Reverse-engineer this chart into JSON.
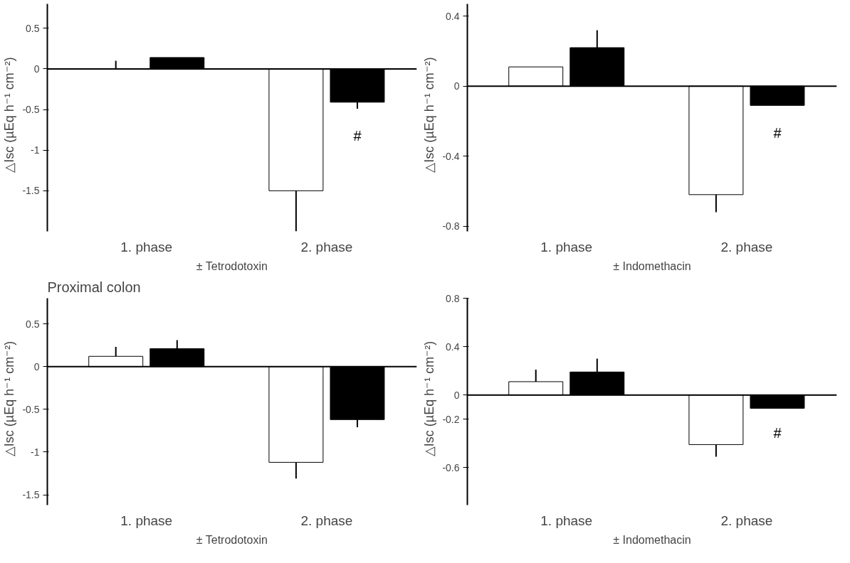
{
  "chart_data": [
    {
      "type": "bar",
      "xlabel": "± Tetrodotoxin",
      "ylabel": "△Isc (µEq h⁻¹ cm⁻²)",
      "categories": [
        "1. phase",
        "2. phase"
      ],
      "ylim": [
        -2.0,
        0.8
      ],
      "yticks": [
        0.5,
        0,
        -0.5,
        -1,
        -1.5
      ],
      "annotations": [
        "#"
      ],
      "series": [
        {
          "color": "#ffffff",
          "values": [
            0.0,
            -1.5
          ],
          "errors": [
            [
              0.0,
              0.1
            ],
            [
              -2.0,
              -1.5
            ]
          ]
        },
        {
          "color": "#000000",
          "values": [
            0.14,
            -0.41
          ],
          "errors": [
            null,
            [
              -0.49,
              -0.41
            ]
          ]
        }
      ]
    },
    {
      "type": "bar",
      "xlabel": "± Indomethacin",
      "ylabel": "△Isc (µEq h⁻¹ cm⁻²)",
      "categories": [
        "1. phase",
        "2. phase"
      ],
      "ylim": [
        -0.83,
        0.47
      ],
      "yticks": [
        0.4,
        0,
        -0.4,
        -0.8
      ],
      "annotations": [
        "#"
      ],
      "series": [
        {
          "color": "#ffffff",
          "values": [
            0.11,
            -0.62
          ],
          "errors": [
            null,
            [
              -0.72,
              -0.62
            ]
          ]
        },
        {
          "color": "#000000",
          "values": [
            0.22,
            -0.11
          ],
          "errors": [
            [
              0.22,
              0.32
            ],
            null
          ]
        }
      ]
    },
    {
      "type": "bar",
      "title": "Proximal colon",
      "xlabel": "± Tetrodotoxin",
      "ylabel": "△Isc (µEq h⁻¹ cm⁻²)",
      "categories": [
        "1. phase",
        "2. phase"
      ],
      "ylim": [
        -1.62,
        0.8
      ],
      "yticks": [
        0.5,
        0,
        -0.5,
        -1,
        -1.5
      ],
      "series": [
        {
          "color": "#ffffff",
          "values": [
            0.12,
            -1.12
          ],
          "errors": [
            [
              0.12,
              0.23
            ],
            [
              -1.31,
              -1.12
            ]
          ]
        },
        {
          "color": "#000000",
          "values": [
            0.21,
            -0.62
          ],
          "errors": [
            [
              0.21,
              0.31
            ],
            [
              -0.71,
              -0.62
            ]
          ]
        }
      ]
    },
    {
      "type": "bar",
      "xlabel": "± Indomethacin",
      "ylabel": "△Isc (µEq h⁻¹ cm⁻²)",
      "categories": [
        "1. phase",
        "2. phase"
      ],
      "ylim": [
        -0.91,
        0.8
      ],
      "yticks": [
        0.8,
        0.4,
        0,
        -0.2,
        -0.6
      ],
      "annotations": [
        "#"
      ],
      "series": [
        {
          "color": "#ffffff",
          "values": [
            0.11,
            -0.41
          ],
          "errors": [
            [
              0.11,
              0.21
            ],
            [
              -0.51,
              -0.41
            ]
          ]
        },
        {
          "color": "#000000",
          "values": [
            0.19,
            -0.11
          ],
          "errors": [
            [
              0.19,
              0.3
            ],
            null
          ]
        }
      ]
    }
  ]
}
